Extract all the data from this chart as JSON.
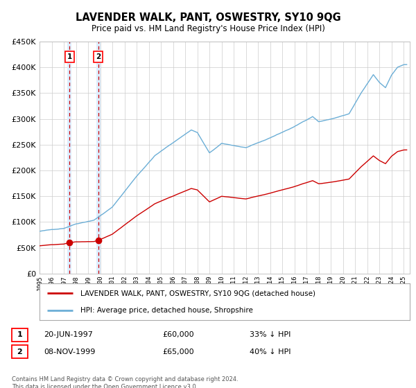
{
  "title": "LAVENDER WALK, PANT, OSWESTRY, SY10 9QG",
  "subtitle": "Price paid vs. HM Land Registry's House Price Index (HPI)",
  "legend_line1": "LAVENDER WALK, PANT, OSWESTRY, SY10 9QG (detached house)",
  "legend_line2": "HPI: Average price, detached house, Shropshire",
  "transaction1_date": "20-JUN-1997",
  "transaction1_price": 60000,
  "transaction1_label": "33% ↓ HPI",
  "transaction2_date": "08-NOV-1999",
  "transaction2_price": 65000,
  "transaction2_label": "40% ↓ HPI",
  "footer": "Contains HM Land Registry data © Crown copyright and database right 2024.\nThis data is licensed under the Open Government Licence v3.0.",
  "hpi_color": "#6baed6",
  "price_color": "#cc0000",
  "marker_color": "#cc0000",
  "vline_color": "#cc0000",
  "vspan_color": "#ddeeff",
  "grid_color": "#cccccc",
  "bg_color": "#ffffff",
  "ylim": [
    0,
    450000
  ],
  "xlim_start": 1995.0,
  "xlim_end": 2025.5,
  "transaction1_x": 1997.47,
  "transaction2_x": 1999.85,
  "hpi_waypoints_x": [
    1995.0,
    1997.0,
    1998.0,
    1999.5,
    2001.0,
    2003.0,
    2004.5,
    2007.5,
    2008.0,
    2009.0,
    2010.0,
    2012.0,
    2013.5,
    2016.0,
    2017.5,
    2018.0,
    2019.0,
    2020.5,
    2021.5,
    2022.5,
    2023.0,
    2023.5,
    2024.0,
    2024.5,
    2025.0
  ],
  "hpi_waypoints_y": [
    82000,
    88000,
    97000,
    105000,
    130000,
    190000,
    230000,
    280000,
    275000,
    235000,
    253000,
    245000,
    258000,
    285000,
    305000,
    295000,
    300000,
    310000,
    350000,
    385000,
    370000,
    360000,
    385000,
    400000,
    405000
  ]
}
